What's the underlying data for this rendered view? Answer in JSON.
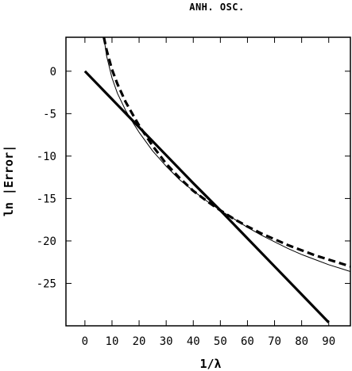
{
  "chart_data": {
    "type": "line",
    "title": "ANH. OSC.",
    "xlabel": "1/λ",
    "ylabel": "ln |Error|",
    "xlim": [
      -7,
      98
    ],
    "ylim": [
      -30,
      4
    ],
    "xticks": [
      0,
      10,
      20,
      30,
      40,
      50,
      60,
      70,
      80,
      90
    ],
    "yticks": [
      0,
      -5,
      -10,
      -15,
      -20,
      -25
    ],
    "grid": false,
    "legend": "none",
    "series": [
      {
        "style": "thick-solid",
        "color": "#000000",
        "x": [
          0,
          10,
          20,
          30,
          40,
          50,
          60,
          70,
          80,
          90
        ],
        "y": [
          0,
          -3.3,
          -6.6,
          -9.9,
          -13.2,
          -16.4,
          -19.7,
          -23.0,
          -26.3,
          -29.6
        ]
      },
      {
        "style": "dashed",
        "color": "#000000",
        "x": [
          7,
          8,
          10,
          12,
          15,
          18,
          20,
          25,
          30,
          35,
          40,
          45,
          50,
          55,
          60,
          65,
          70,
          75,
          80,
          85,
          90,
          95,
          98
        ],
        "y": [
          4.0,
          2.5,
          0.2,
          -1.5,
          -3.6,
          -5.3,
          -6.4,
          -8.8,
          -10.9,
          -12.6,
          -14.1,
          -15.3,
          -16.4,
          -17.4,
          -18.3,
          -19.1,
          -19.8,
          -20.5,
          -21.1,
          -21.7,
          -22.2,
          -22.7,
          -23.0
        ]
      },
      {
        "style": "thin-solid",
        "color": "#000000",
        "x": [
          7,
          8,
          10,
          12,
          15,
          18,
          20,
          25,
          30,
          35,
          40,
          45,
          50,
          55,
          60,
          65,
          70,
          75,
          80,
          85,
          90,
          95,
          98
        ],
        "y": [
          4.0,
          1.8,
          -0.8,
          -2.6,
          -4.6,
          -6.2,
          -7.2,
          -9.4,
          -11.2,
          -12.8,
          -14.1,
          -15.3,
          -16.4,
          -17.4,
          -18.4,
          -19.3,
          -20.1,
          -20.9,
          -21.6,
          -22.2,
          -22.8,
          -23.3,
          -23.6
        ]
      }
    ]
  }
}
